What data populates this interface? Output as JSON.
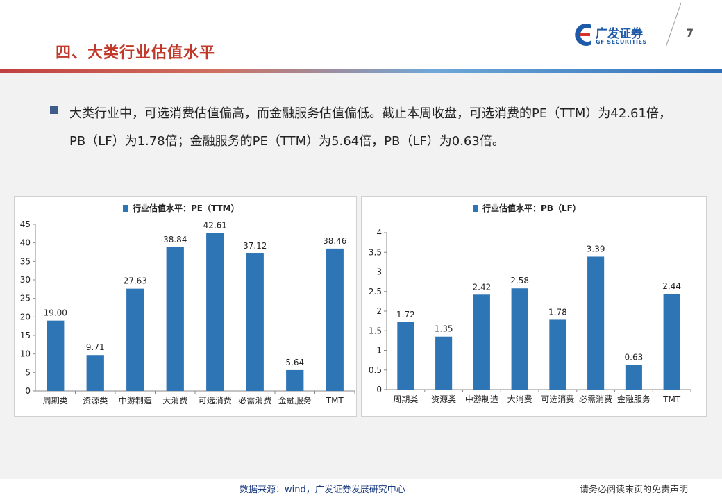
{
  "header": {
    "title": "四、大类行业估值水平",
    "logo_cn": "广发证券",
    "logo_en": "GF SECURITIES",
    "page_number": "7"
  },
  "body": {
    "paragraph": "大类行业中，可选消费估值偏高，而金融服务估值偏低。截止本周收盘，可选消费的PE（TTM）为42.61倍，PB（LF）为1.78倍；金融服务的PE（TTM）为5.64倍，PB（LF）为0.63倍。"
  },
  "footer": {
    "source": "数据来源：wind，广发证券发展研究中心",
    "disclaimer": "请务必阅读末页的免责声明"
  },
  "colors": {
    "title": "#c0392b",
    "bar": "#2e75b6",
    "brand": "#1e5aa8"
  },
  "chart_data": [
    {
      "type": "bar",
      "legend": "行业估值水平：PE（TTM）",
      "categories": [
        "周期类",
        "资源类",
        "中游制造",
        "大消费",
        "可选消费",
        "必需消费",
        "金融服务",
        "TMT"
      ],
      "values": [
        19.0,
        9.71,
        27.63,
        38.84,
        42.61,
        37.12,
        5.64,
        38.46
      ],
      "labels": [
        "19.00",
        "9.71",
        "27.63",
        "38.84",
        "42.61",
        "37.12",
        "5.64",
        "38.46"
      ],
      "ylim": [
        0,
        45
      ],
      "yticks": [
        "0",
        "5",
        "10",
        "15",
        "20",
        "25",
        "30",
        "35",
        "40",
        "45"
      ],
      "legend_position": "top"
    },
    {
      "type": "bar",
      "legend": "行业估值水平：PB（LF）",
      "categories": [
        "周期类",
        "资源类",
        "中游制造",
        "大消费",
        "可选消费",
        "必需消费",
        "金融服务",
        "TMT"
      ],
      "values": [
        1.72,
        1.35,
        2.42,
        2.58,
        1.78,
        3.39,
        0.63,
        2.44
      ],
      "labels": [
        "1.72",
        "1.35",
        "2.42",
        "2.58",
        "1.78",
        "3.39",
        "0.63",
        "2.44"
      ],
      "ylim": [
        0,
        4
      ],
      "yticks": [
        "0",
        "0.5",
        "1",
        "1.5",
        "2",
        "2.5",
        "3",
        "3.5",
        "4"
      ],
      "legend_position": "top"
    }
  ]
}
